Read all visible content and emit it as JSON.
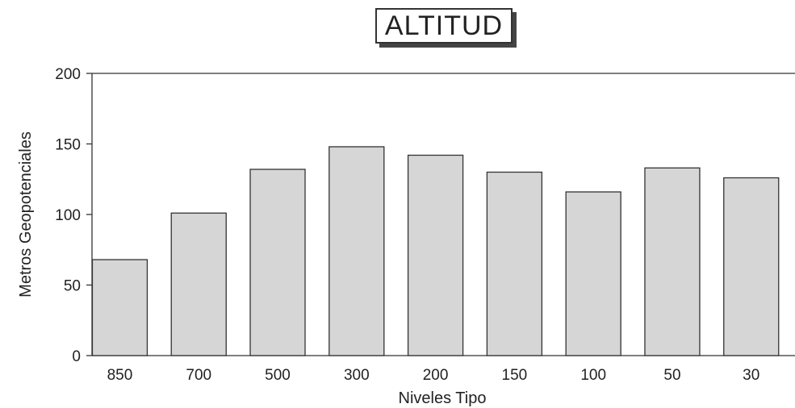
{
  "chart_data": {
    "type": "bar",
    "title": "ALTITUD",
    "xlabel": "Niveles Tipo",
    "ylabel": "Metros Geopotenciales",
    "categories": [
      "850",
      "700",
      "500",
      "300",
      "200",
      "150",
      "100",
      "50",
      "30"
    ],
    "values": [
      68,
      101,
      132,
      148,
      142,
      130,
      116,
      133,
      126
    ],
    "ylim": [
      0,
      200
    ],
    "yticks": [
      0,
      50,
      100,
      150,
      200
    ],
    "grid": false,
    "legend": "none",
    "colors": {
      "bar_fill": "#d6d6d6",
      "bar_stroke": "#333333"
    }
  }
}
